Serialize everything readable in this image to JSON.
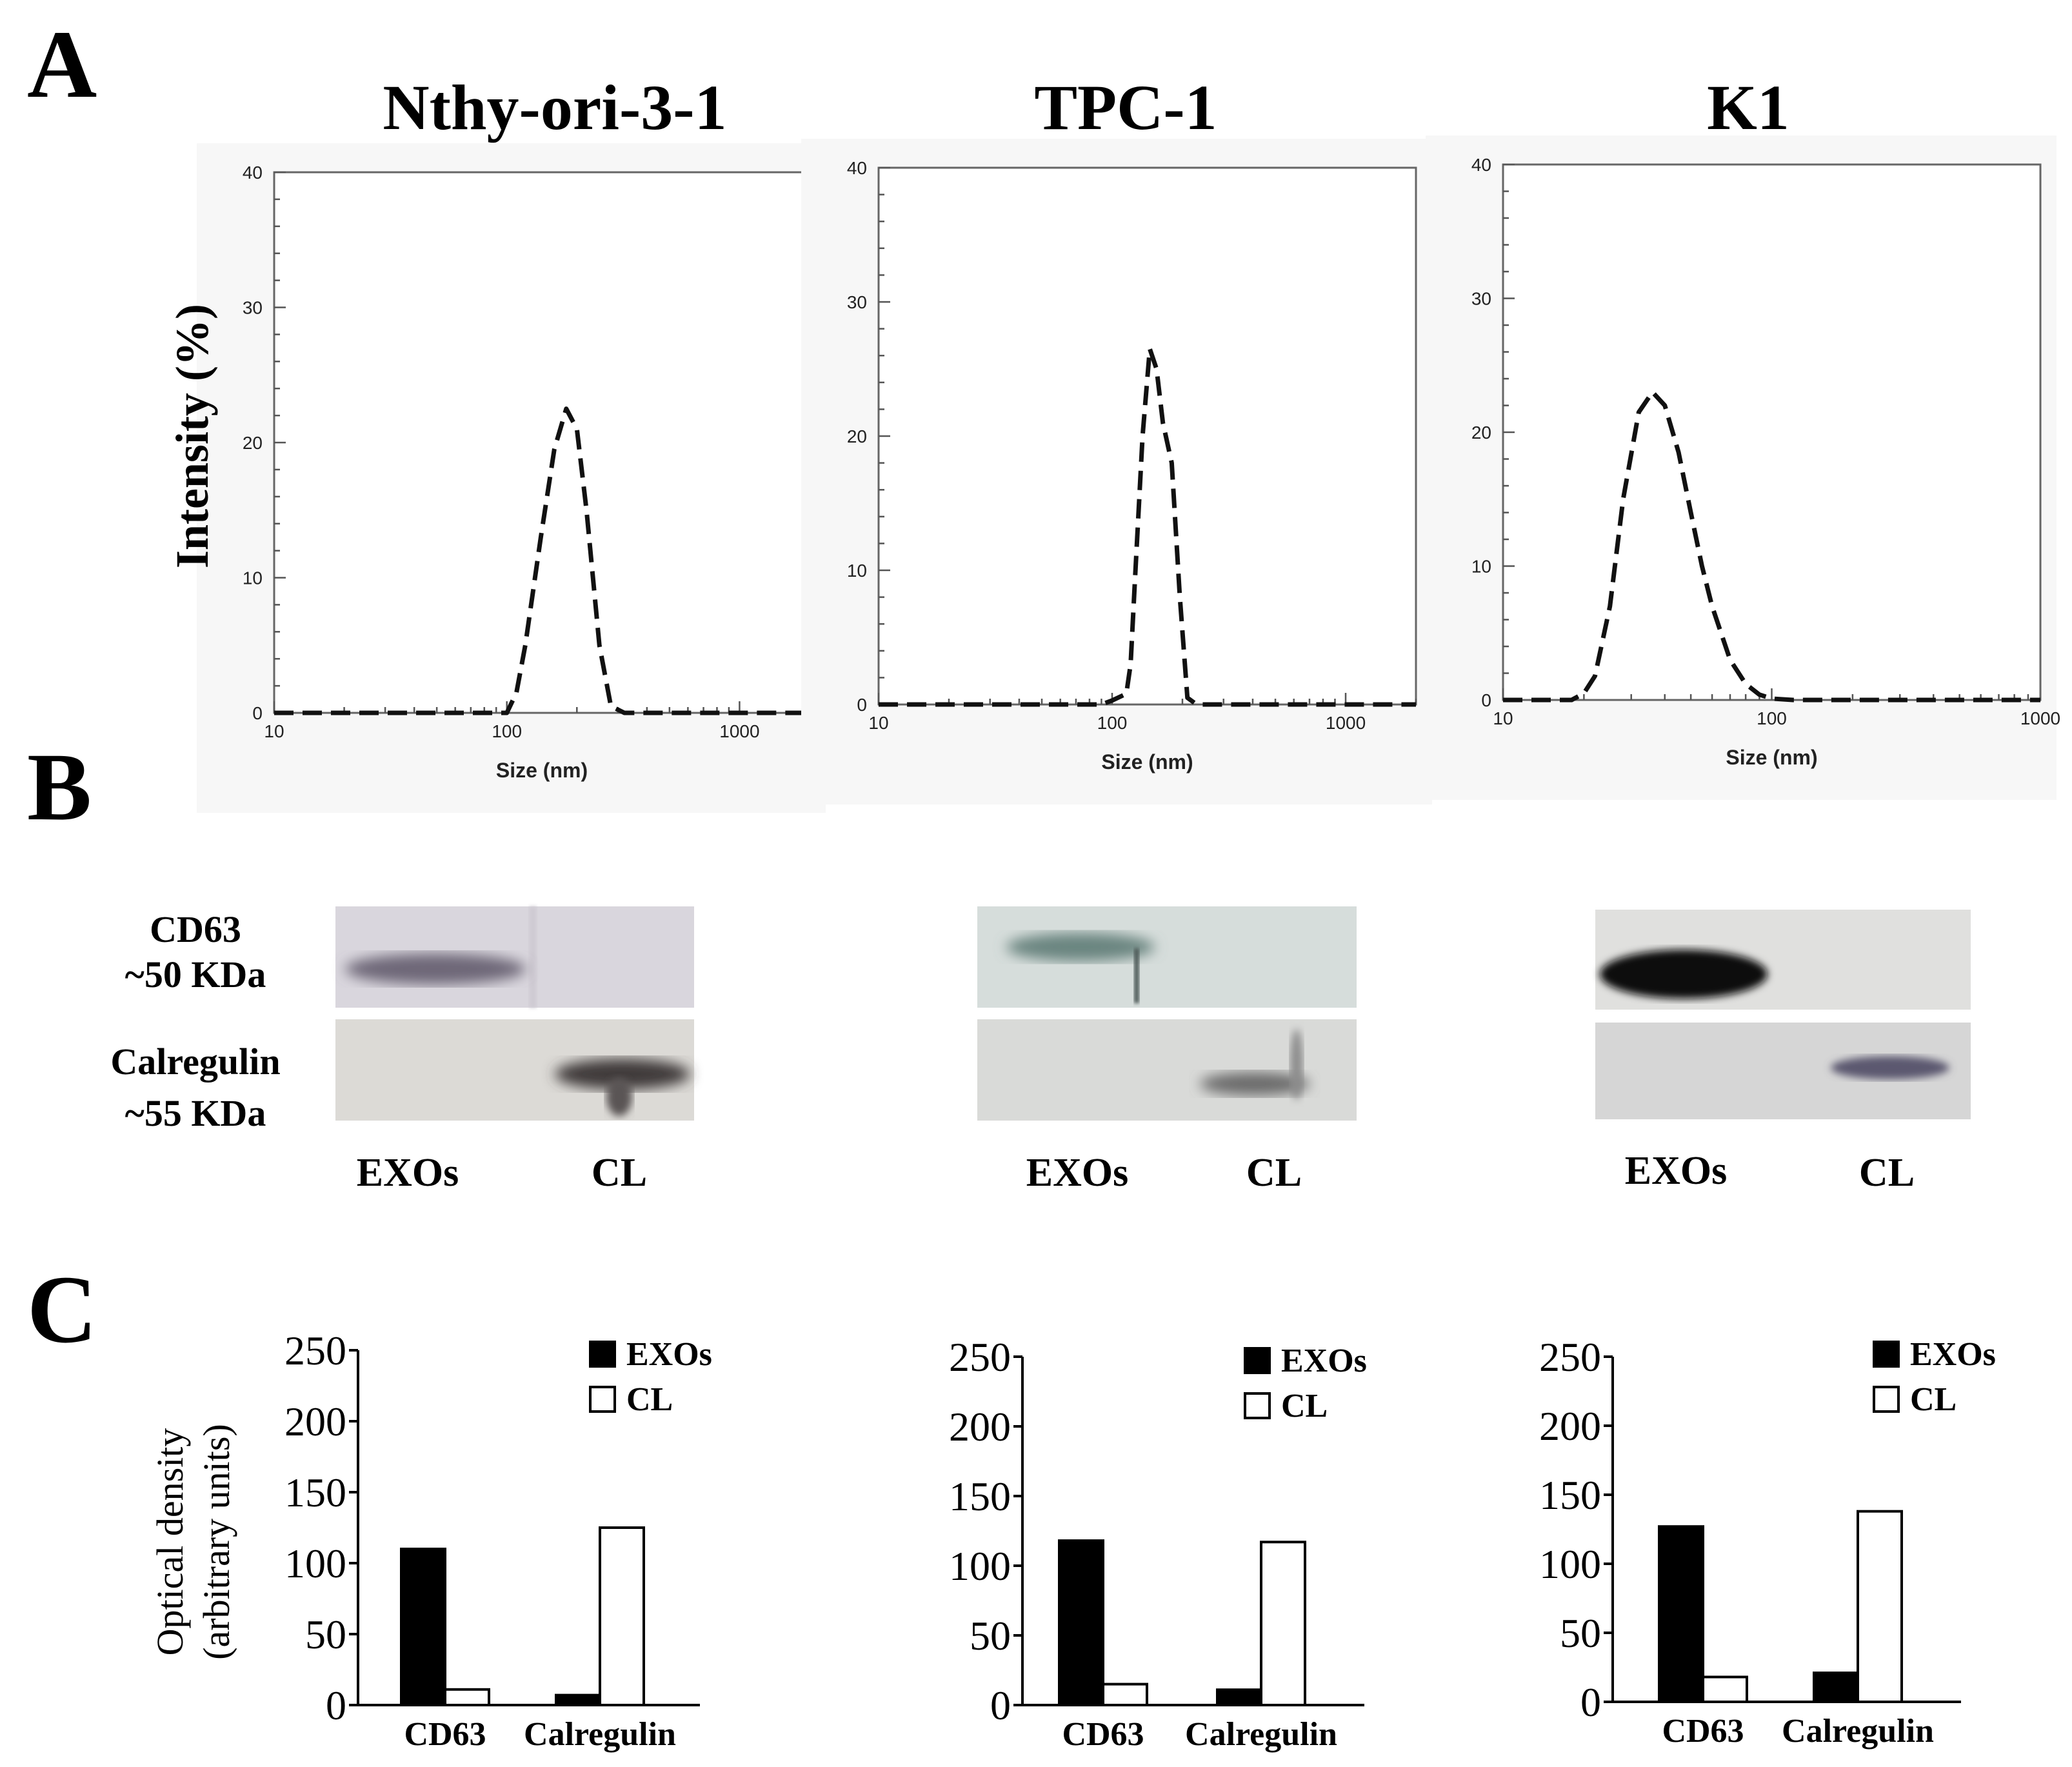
{
  "panel_labels": {
    "A": "A",
    "B": "B",
    "C": "C"
  },
  "chart_data": [
    {
      "type": "line",
      "title": "Nthy-ori-3-1",
      "xlabel": "Size (nm)",
      "ylabel": "Intensity (%)",
      "xscale": "log",
      "xlim": [
        10,
        2000
      ],
      "ylim": [
        0,
        40
      ],
      "xticks": [
        "10",
        "100",
        "1000"
      ],
      "yticks": [
        "0",
        "10",
        "20",
        "30",
        "40"
      ],
      "series": [
        {
          "name": "Nthy-ori-3-1",
          "style": "dashed",
          "x": [
            10,
            100,
            110,
            120,
            140,
            160,
            180,
            200,
            220,
            250,
            280,
            320,
            400,
            1000,
            2000
          ],
          "y": [
            0,
            0,
            1.5,
            5,
            13,
            19.5,
            22.5,
            21,
            15,
            5,
            0.5,
            0,
            0,
            0,
            0
          ]
        }
      ]
    },
    {
      "type": "line",
      "title": "TPC-1",
      "xlabel": "Size (nm)",
      "ylabel": "",
      "xscale": "log",
      "xlim": [
        10,
        2000
      ],
      "ylim": [
        0,
        40
      ],
      "xticks": [
        "10",
        "100",
        "1000"
      ],
      "yticks": [
        "0",
        "10",
        "20",
        "30",
        "40"
      ],
      "series": [
        {
          "name": "TPC-1",
          "style": "dashed",
          "x": [
            10,
            90,
            100,
            115,
            120,
            125,
            135,
            145,
            155,
            165,
            180,
            195,
            210,
            230,
            300,
            1000,
            2000
          ],
          "y": [
            0,
            0,
            0.3,
            0.8,
            3,
            9,
            20,
            26.5,
            25,
            21,
            18,
            8,
            0.5,
            0,
            0,
            0,
            0
          ]
        }
      ]
    },
    {
      "type": "line",
      "title": "K1",
      "xlabel": "Size (nm)",
      "ylabel": "",
      "xscale": "log",
      "xlim": [
        10,
        1000
      ],
      "ylim": [
        0,
        40
      ],
      "xticks": [
        "10",
        "100",
        "1000"
      ],
      "yticks": [
        "0",
        "10",
        "20",
        "30",
        "40"
      ],
      "series": [
        {
          "name": "K1",
          "style": "dashed",
          "x": [
            10,
            18,
            20,
            22,
            25,
            28,
            32,
            36,
            40,
            45,
            50,
            55,
            60,
            70,
            80,
            90,
            100,
            120,
            1000
          ],
          "y": [
            0,
            0,
            0.5,
            1.8,
            7,
            15,
            21.5,
            23,
            22,
            18.5,
            14,
            10,
            7,
            3,
            1.2,
            0.4,
            0.1,
            0,
            0
          ]
        }
      ]
    },
    {
      "type": "bar",
      "title": "",
      "categories": [
        "CD63",
        "Calregulin"
      ],
      "ylabel": "Optical density (arbitrary units)",
      "ylim": [
        0,
        250
      ],
      "yticks": [
        "0",
        "50",
        "100",
        "150",
        "200",
        "250"
      ],
      "series": [
        {
          "name": "EXOs",
          "fill": "#000000",
          "values": [
            110,
            7
          ]
        },
        {
          "name": "CL",
          "fill": "#ffffff",
          "values": [
            11,
            125
          ]
        }
      ]
    },
    {
      "type": "bar",
      "title": "",
      "categories": [
        "CD63",
        "Calregulin"
      ],
      "ylabel": "",
      "ylim": [
        0,
        250
      ],
      "yticks": [
        "0",
        "50",
        "100",
        "150",
        "200",
        "250"
      ],
      "series": [
        {
          "name": "EXOs",
          "fill": "#000000",
          "values": [
            118,
            11
          ]
        },
        {
          "name": "CL",
          "fill": "#ffffff",
          "values": [
            15,
            117
          ]
        }
      ]
    },
    {
      "type": "bar",
      "title": "",
      "categories": [
        "CD63",
        "Calregulin"
      ],
      "ylabel": "",
      "ylim": [
        0,
        250
      ],
      "yticks": [
        "0",
        "50",
        "100",
        "150",
        "200",
        "250"
      ],
      "series": [
        {
          "name": "EXOs",
          "fill": "#000000",
          "values": [
            127,
            21
          ]
        },
        {
          "name": "CL",
          "fill": "#ffffff",
          "values": [
            18,
            138
          ]
        }
      ]
    }
  ],
  "blot_labels": {
    "cd63_name": "CD63",
    "cd63_kda": "~50 KDa",
    "calregulin_name": "Calregulin",
    "calregulin_kda": "~55 KDa",
    "lane_exos": "EXOs",
    "lane_cl": "CL"
  },
  "bar_ylabel_line1": "Optical density",
  "bar_ylabel_line2": "(arbitrary units)"
}
